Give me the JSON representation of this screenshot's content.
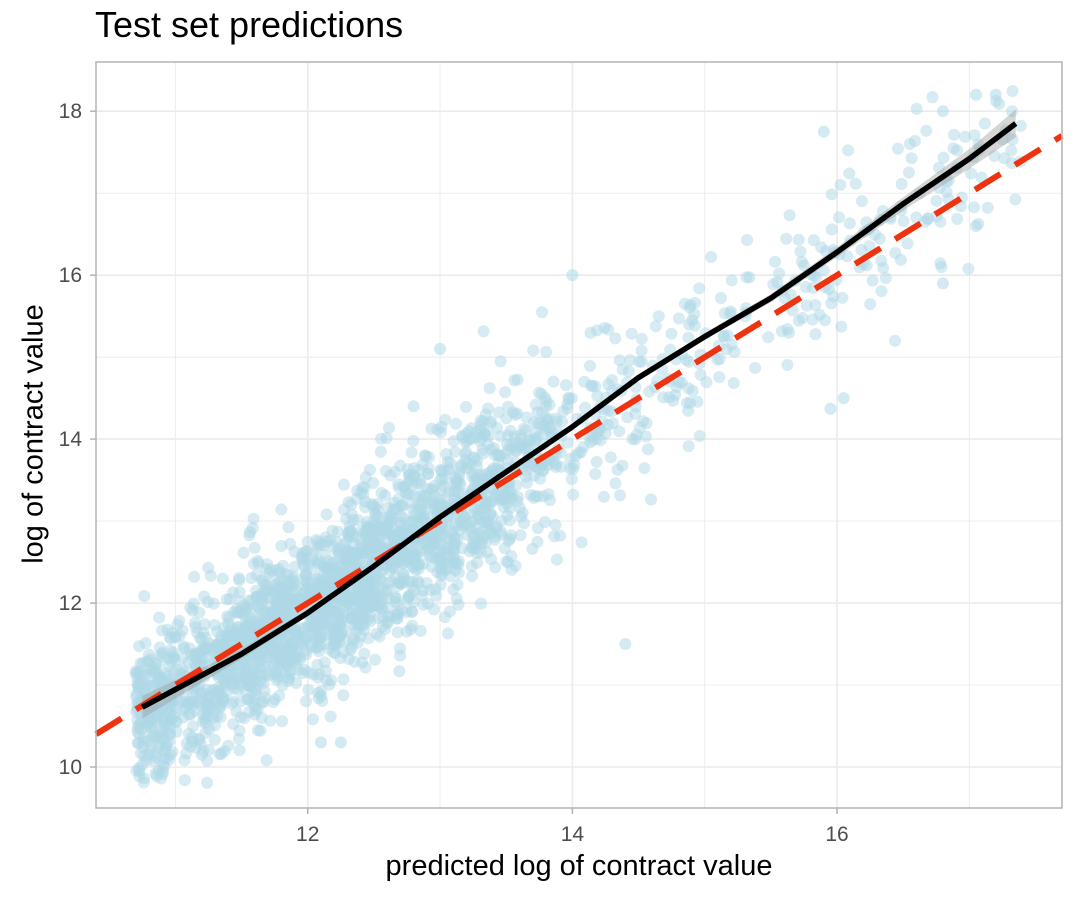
{
  "chart_data": {
    "type": "scatter",
    "title": "Test set predictions",
    "xlabel": "predicted log of contract value",
    "ylabel": "log of contract value",
    "xlim": [
      10.4,
      17.7
    ],
    "ylim": [
      9.5,
      18.6
    ],
    "x_ticks": [
      12,
      14,
      16
    ],
    "y_ticks": [
      10,
      12,
      14,
      16,
      18
    ],
    "grid": true,
    "legend": "none",
    "point_cloud": {
      "description_points": 2500,
      "x_range": [
        10.7,
        17.4
      ],
      "trend": "y ≈ x",
      "spread_sd": 0.5
    },
    "series": [
      {
        "kind": "points",
        "color": "#add8e6",
        "sample_points": [
          [
            10.72,
            10.99
          ],
          [
            10.85,
            9.92
          ],
          [
            16.8,
            18.0
          ],
          [
            17.05,
            18.2
          ],
          [
            17.2,
            18.2
          ],
          [
            15.9,
            17.75
          ],
          [
            16.05,
            14.5
          ],
          [
            15.95,
            14.37
          ],
          [
            14.4,
            11.5
          ],
          [
            12.1,
            10.3
          ],
          [
            12.25,
            10.3
          ],
          [
            11.2,
            10.15
          ],
          [
            13.0,
            15.1
          ],
          [
            12.8,
            14.4
          ],
          [
            14.0,
            16.0
          ],
          [
            16.8,
            15.9
          ],
          [
            17.05,
            16.6
          ]
        ]
      },
      {
        "kind": "smooth",
        "color": "#000000",
        "points": [
          [
            10.75,
            10.73
          ],
          [
            11.5,
            11.38
          ],
          [
            12.0,
            11.88
          ],
          [
            12.5,
            12.45
          ],
          [
            13.0,
            13.05
          ],
          [
            13.5,
            13.6
          ],
          [
            14.0,
            14.15
          ],
          [
            14.5,
            14.75
          ],
          [
            15.0,
            15.25
          ],
          [
            15.5,
            15.72
          ],
          [
            16.0,
            16.28
          ],
          [
            16.5,
            16.87
          ],
          [
            17.0,
            17.42
          ],
          [
            17.35,
            17.85
          ]
        ],
        "band_halfwidth": [
          0.14,
          0.06,
          0.04,
          0.03,
          0.03,
          0.03,
          0.03,
          0.03,
          0.04,
          0.05,
          0.06,
          0.08,
          0.12,
          0.17
        ]
      },
      {
        "kind": "reference",
        "color": "#ee3311",
        "dash": "dashed",
        "slope": 1,
        "intercept": 0
      }
    ]
  }
}
